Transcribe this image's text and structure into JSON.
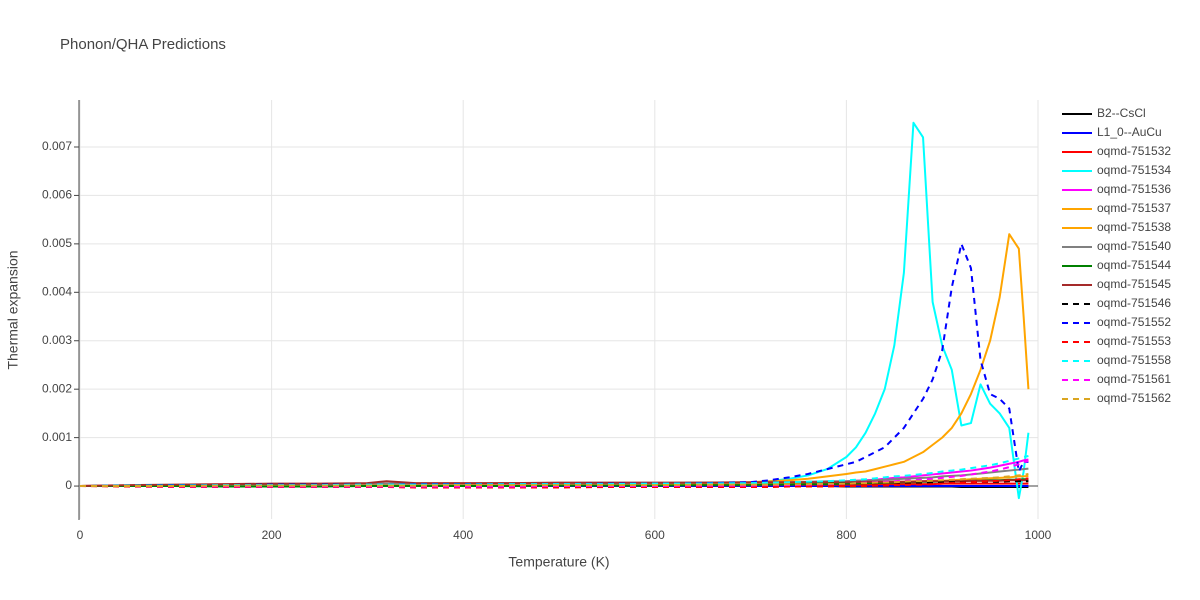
{
  "chart_data": {
    "type": "line",
    "title": "Phonon/QHA Predictions",
    "x_label": "Temperature (K)",
    "y_label": "Thermal expansion",
    "x": [
      0,
      50,
      100,
      150,
      200,
      250,
      300,
      320,
      350,
      400,
      450,
      500,
      550,
      600,
      650,
      700,
      720,
      740,
      760,
      780,
      800,
      810,
      820,
      830,
      840,
      850,
      860,
      870,
      880,
      890,
      900,
      910,
      920,
      930,
      940,
      950,
      960,
      970,
      980,
      985,
      990
    ],
    "xlim": [
      0,
      1000
    ],
    "xticks": [
      0,
      200,
      400,
      600,
      800,
      1000
    ],
    "ylim": [
      -0.00068,
      0.00797
    ],
    "yticks": [
      0,
      0.001,
      0.002,
      0.003,
      0.004,
      0.005,
      0.006,
      0.007
    ],
    "grid": true,
    "legend": "right",
    "series": [
      {
        "name": "B2--CsCl",
        "color": "#000000",
        "dash": false,
        "values": [
          0,
          0,
          0,
          0,
          0,
          0,
          0,
          0,
          0,
          0,
          0,
          0,
          0,
          0,
          0,
          0,
          0,
          0,
          0,
          0,
          -1e-05,
          -1e-05,
          -1e-05,
          -1e-05,
          -1e-05,
          -1e-05,
          -1e-05,
          -1e-05,
          -1e-05,
          -1e-05,
          -1e-05,
          -1e-05,
          -2e-05,
          -2e-05,
          -2e-05,
          -2e-05,
          -2e-05,
          -2e-05,
          -2e-05,
          -2e-05,
          -2e-05
        ]
      },
      {
        "name": "L1_0--AuCu",
        "color": "#0000ff",
        "dash": false,
        "values": [
          0,
          0,
          0,
          0,
          0,
          0,
          0,
          0,
          0,
          0,
          0,
          0,
          0,
          0,
          0,
          0,
          0,
          0,
          0,
          0,
          0,
          0,
          0,
          0,
          0,
          0,
          0,
          0,
          0,
          0,
          0,
          0,
          0,
          0,
          0,
          0,
          0,
          0,
          0,
          0,
          0
        ]
      },
      {
        "name": "oqmd-751532",
        "color": "#ff0000",
        "dash": false,
        "values": [
          0,
          1e-05,
          2e-05,
          2e-05,
          2e-05,
          2e-05,
          2e-05,
          2e-05,
          2e-05,
          2e-05,
          2e-05,
          2e-05,
          2e-05,
          2e-05,
          2e-05,
          2e-05,
          3e-05,
          3e-05,
          3e-05,
          3e-05,
          3e-05,
          3e-05,
          3e-05,
          4e-05,
          4e-05,
          4e-05,
          4e-05,
          4e-05,
          4e-05,
          4e-05,
          5e-05,
          5e-05,
          5e-05,
          5e-05,
          5e-05,
          5e-05,
          5e-05,
          5e-05,
          5e-05,
          5e-05,
          5e-05
        ]
      },
      {
        "name": "oqmd-751534",
        "color": "#00ffff",
        "dash": false,
        "values": [
          0,
          1e-05,
          2e-05,
          2e-05,
          3e-05,
          3e-05,
          3e-05,
          3e-05,
          3e-05,
          3e-05,
          4e-05,
          4e-05,
          4e-05,
          5e-05,
          5e-05,
          6e-05,
          0.0001,
          0.00015,
          0.00022,
          0.00035,
          0.0006,
          0.0008,
          0.0011,
          0.0015,
          0.002,
          0.0029,
          0.0044,
          0.0075,
          0.0072,
          0.0038,
          0.0029,
          0.0024,
          0.00125,
          0.0013,
          0.0021,
          0.0017,
          0.0015,
          0.0012,
          -0.00025,
          0.0003,
          0.0011
        ]
      },
      {
        "name": "oqmd-751536",
        "color": "#ff00ff",
        "dash": false,
        "values": [
          0,
          1e-05,
          2e-05,
          2e-05,
          2e-05,
          3e-05,
          3e-05,
          3e-05,
          3e-05,
          3e-05,
          3e-05,
          4e-05,
          4e-05,
          4e-05,
          4e-05,
          5e-05,
          6e-05,
          7e-05,
          8e-05,
          9e-05,
          0.0001,
          0.00011,
          0.00012,
          0.00013,
          0.00015,
          0.00017,
          0.00018,
          0.0002,
          0.00022,
          0.00024,
          0.00026,
          0.00028,
          0.0003,
          0.00032,
          0.00035,
          0.00038,
          0.00042,
          0.00046,
          0.0005,
          0.00053,
          0.00055
        ]
      },
      {
        "name": "oqmd-751537",
        "color": "#ffa500",
        "dash": false,
        "values": [
          0,
          1e-05,
          2e-05,
          3e-05,
          3e-05,
          4e-05,
          4e-05,
          4e-05,
          4e-05,
          4e-05,
          5e-05,
          5e-05,
          5e-05,
          5e-05,
          5e-05,
          5e-05,
          6e-05,
          6e-05,
          6e-05,
          7e-05,
          7e-05,
          7e-05,
          8e-05,
          8e-05,
          8e-05,
          9e-05,
          9e-05,
          0.0001,
          0.0001,
          0.00011,
          0.00011,
          0.00012,
          0.00013,
          0.00014,
          0.00015,
          0.00016,
          0.00017,
          0.00018,
          0.0002,
          0.0002,
          0.00021
        ]
      },
      {
        "name": "oqmd-751538",
        "color": "#ffa500",
        "dash": false,
        "values": [
          0,
          1e-05,
          2e-05,
          3e-05,
          3e-05,
          4e-05,
          4e-05,
          4e-05,
          5e-05,
          5e-05,
          5e-05,
          5e-05,
          6e-05,
          6e-05,
          7e-05,
          8e-05,
          0.0001,
          0.00012,
          0.00015,
          0.0002,
          0.00025,
          0.00028,
          0.0003,
          0.00035,
          0.0004,
          0.00045,
          0.0005,
          0.0006,
          0.0007,
          0.00085,
          0.001,
          0.0012,
          0.0015,
          0.0019,
          0.0024,
          0.003,
          0.0039,
          0.0052,
          0.0049,
          0.0035,
          0.002
        ]
      },
      {
        "name": "oqmd-751540",
        "color": "#808080",
        "dash": false,
        "values": [
          0,
          1e-05,
          2e-05,
          3e-05,
          4e-05,
          4e-05,
          5e-05,
          5e-05,
          5e-05,
          5e-05,
          6e-05,
          6e-05,
          6e-05,
          6e-05,
          7e-05,
          7e-05,
          8e-05,
          8e-05,
          9e-05,
          0.0001,
          0.0001,
          0.00011,
          0.00011,
          0.00012,
          0.00013,
          0.00014,
          0.00015,
          0.00016,
          0.00017,
          0.00018,
          0.0002,
          0.00021,
          0.00022,
          0.00024,
          0.00026,
          0.00028,
          0.0003,
          0.00032,
          0.00034,
          0.00035,
          0.00036
        ]
      },
      {
        "name": "oqmd-751544",
        "color": "#008000",
        "dash": false,
        "values": [
          0,
          0,
          0,
          -1e-05,
          -1e-05,
          -1e-05,
          0,
          0,
          0,
          0,
          0,
          1e-05,
          1e-05,
          1e-05,
          2e-05,
          2e-05,
          3e-05,
          3e-05,
          4e-05,
          4e-05,
          5e-05,
          5e-05,
          6e-05,
          6e-05,
          7e-05,
          7e-05,
          8e-05,
          8e-05,
          9e-05,
          9e-05,
          0.0001,
          0.0001,
          0.0001,
          0.00011,
          0.00011,
          0.00012,
          0.00012,
          0.00013,
          0.00013,
          0.00014,
          0.00014
        ]
      },
      {
        "name": "oqmd-751545",
        "color": "#a52a2a",
        "dash": false,
        "values": [
          0,
          2e-05,
          3e-05,
          4e-05,
          5e-05,
          5e-05,
          6e-05,
          0.0001,
          6e-05,
          6e-05,
          6e-05,
          7e-05,
          7e-05,
          7e-05,
          7e-05,
          8e-05,
          8e-05,
          8e-05,
          8e-05,
          8e-05,
          8e-05,
          8e-05,
          9e-05,
          9e-05,
          9e-05,
          9e-05,
          9e-05,
          9e-05,
          0.0001,
          0.0001,
          0.0001,
          0.0001,
          0.0001,
          0.00011,
          0.00011,
          0.00011,
          0.00011,
          0.00012,
          0.00012,
          0.00012,
          0.00012
        ]
      },
      {
        "name": "oqmd-751546",
        "color": "#000000",
        "dash": true,
        "values": [
          0,
          1e-05,
          2e-05,
          2e-05,
          3e-05,
          3e-05,
          3e-05,
          3e-05,
          3e-05,
          4e-05,
          4e-05,
          4e-05,
          4e-05,
          4e-05,
          5e-05,
          5e-05,
          5e-05,
          5e-05,
          5e-05,
          6e-05,
          6e-05,
          6e-05,
          6e-05,
          6e-05,
          6e-05,
          7e-05,
          7e-05,
          7e-05,
          7e-05,
          7e-05,
          8e-05,
          8e-05,
          8e-05,
          8e-05,
          9e-05,
          9e-05,
          9e-05,
          0.0001,
          0.0001,
          0.0001,
          0.0001
        ]
      },
      {
        "name": "oqmd-751552",
        "color": "#0000ff",
        "dash": true,
        "values": [
          0,
          1e-05,
          2e-05,
          2e-05,
          3e-05,
          3e-05,
          3e-05,
          3e-05,
          4e-05,
          4e-05,
          4e-05,
          4e-05,
          5e-05,
          5e-05,
          6e-05,
          8e-05,
          0.00012,
          0.00018,
          0.00025,
          0.00035,
          0.00045,
          0.0005,
          0.0006,
          0.0007,
          0.0008,
          0.001,
          0.0012,
          0.0015,
          0.0018,
          0.0022,
          0.0028,
          0.0041,
          0.005,
          0.0045,
          0.0026,
          0.0019,
          0.0018,
          0.0016,
          0.0003,
          0.0005,
          0.0005
        ]
      },
      {
        "name": "oqmd-751553",
        "color": "#ff0000",
        "dash": true,
        "values": [
          0,
          -1e-05,
          -2e-05,
          -2e-05,
          -2e-05,
          -2e-05,
          -2e-05,
          -2e-05,
          -3e-05,
          -3e-05,
          -3e-05,
          -3e-05,
          -2e-05,
          -2e-05,
          -2e-05,
          -2e-05,
          -2e-05,
          -1e-05,
          -1e-05,
          -1e-05,
          0,
          0,
          0,
          1e-05,
          1e-05,
          2e-05,
          2e-05,
          3e-05,
          3e-05,
          4e-05,
          5e-05,
          6e-05,
          7e-05,
          8e-05,
          9e-05,
          0.0001,
          0.00011,
          0.00012,
          0.00014,
          0.00015,
          0.00016
        ]
      },
      {
        "name": "oqmd-751558",
        "color": "#00ffff",
        "dash": true,
        "values": [
          0,
          1e-05,
          1e-05,
          2e-05,
          2e-05,
          2e-05,
          3e-05,
          3e-05,
          3e-05,
          3e-05,
          4e-05,
          4e-05,
          4e-05,
          5e-05,
          5e-05,
          6e-05,
          7e-05,
          8e-05,
          9e-05,
          0.0001,
          0.00012,
          0.00013,
          0.00014,
          0.00016,
          0.00018,
          0.0002,
          0.00021,
          0.00023,
          0.00025,
          0.00027,
          0.0003,
          0.00032,
          0.00034,
          0.00037,
          0.0004,
          0.00043,
          0.00047,
          0.00052,
          0.00057,
          0.0006,
          0.00062
        ]
      },
      {
        "name": "oqmd-751561",
        "color": "#ff00ff",
        "dash": true,
        "values": [
          0,
          0,
          -1e-05,
          -1e-05,
          -1e-05,
          -1e-05,
          -1e-05,
          -1e-05,
          -1e-05,
          -1e-05,
          -1e-05,
          0,
          0,
          0,
          1e-05,
          1e-05,
          2e-05,
          2e-05,
          3e-05,
          4e-05,
          5e-05,
          6e-05,
          7e-05,
          8e-05,
          9e-05,
          0.0001,
          0.00011,
          0.00012,
          0.00014,
          0.00015,
          0.00017,
          0.00019,
          0.00021,
          0.00024,
          0.00027,
          0.0003,
          0.00034,
          0.00039,
          0.00045,
          0.00049,
          0.00052
        ]
      },
      {
        "name": "oqmd-751562",
        "color": "#daa520",
        "dash": true,
        "values": [
          0,
          0,
          0,
          1e-05,
          1e-05,
          1e-05,
          1e-05,
          1e-05,
          1e-05,
          2e-05,
          2e-05,
          2e-05,
          2e-05,
          2e-05,
          3e-05,
          3e-05,
          3e-05,
          4e-05,
          4e-05,
          5e-05,
          5e-05,
          6e-05,
          6e-05,
          7e-05,
          7e-05,
          8e-05,
          9e-05,
          0.0001,
          0.0001,
          0.00011,
          0.00012,
          0.00013,
          0.00014,
          0.00015,
          0.00016,
          0.00017,
          0.00018,
          0.0002,
          0.00022,
          0.00023,
          0.00025
        ]
      }
    ]
  }
}
